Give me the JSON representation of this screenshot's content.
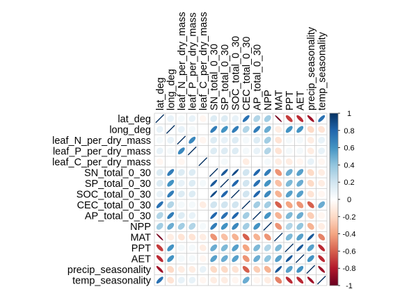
{
  "chart_data": {
    "type": "heatmap",
    "style": "ellipse correlation matrix",
    "variables": [
      "lat_deg",
      "long_deg",
      "leaf_N_per_dry_mass",
      "leaf_P_per_dry_mass",
      "leaf_C_per_dry_mass",
      "SN_total_0_30",
      "SP_total_0_30",
      "SOC_total_0_30",
      "CEC_total_0_30",
      "AP_total_0_30",
      "NPP",
      "MAT",
      "PPT",
      "AET",
      "precip_seasonality",
      "temp_seasonality"
    ],
    "matrix": [
      [
        1,
        0.1,
        0.05,
        0.1,
        -0.05,
        0.15,
        0.15,
        0.1,
        0.75,
        0.3,
        0.35,
        -0.95,
        -0.7,
        -0.75,
        -0.85,
        0.75
      ],
      [
        0.1,
        1,
        0.1,
        0.05,
        0.0,
        0.7,
        0.6,
        0.7,
        0.3,
        0.7,
        0.5,
        -0.1,
        0.6,
        0.6,
        -0.2,
        -0.15
      ],
      [
        0.05,
        0.1,
        1,
        0.65,
        -0.05,
        0.15,
        0.1,
        0.15,
        0.05,
        0.15,
        0.35,
        -0.15,
        0.05,
        0.05,
        -0.1,
        0.1
      ],
      [
        0.1,
        0.05,
        0.65,
        1,
        0.0,
        0.15,
        0.15,
        0.15,
        0.05,
        0.1,
        0.3,
        -0.15,
        0.05,
        0.05,
        -0.1,
        0.1
      ],
      [
        -0.05,
        0.0,
        -0.05,
        0.0,
        1,
        0.0,
        0.05,
        0.0,
        -0.1,
        0.0,
        0.05,
        -0.1,
        -0.1,
        -0.05,
        0.1,
        -0.05
      ],
      [
        0.15,
        0.7,
        0.15,
        0.15,
        0.0,
        1,
        0.85,
        0.9,
        0.2,
        0.8,
        0.7,
        -0.45,
        0.5,
        0.55,
        -0.2,
        -0.1
      ],
      [
        0.15,
        0.6,
        0.1,
        0.15,
        0.05,
        0.85,
        1,
        0.8,
        0.2,
        0.75,
        0.6,
        -0.3,
        0.45,
        0.5,
        -0.2,
        -0.1
      ],
      [
        0.1,
        0.7,
        0.15,
        0.15,
        0.0,
        0.9,
        0.8,
        1,
        0.2,
        0.8,
        0.65,
        -0.35,
        0.55,
        0.55,
        -0.15,
        -0.05
      ],
      [
        0.75,
        0.3,
        0.05,
        0.05,
        -0.1,
        0.2,
        0.2,
        0.2,
        1,
        0.35,
        0.35,
        -0.6,
        -0.4,
        -0.45,
        -0.6,
        0.5
      ],
      [
        0.3,
        0.7,
        0.15,
        0.1,
        0.0,
        0.8,
        0.75,
        0.8,
        0.35,
        1,
        0.6,
        -0.35,
        0.45,
        0.5,
        -0.25,
        -0.05
      ],
      [
        0.35,
        0.5,
        0.35,
        0.3,
        0.05,
        0.7,
        0.6,
        0.65,
        0.35,
        0.6,
        1,
        -0.45,
        0.3,
        0.4,
        -0.35,
        -0.1
      ],
      [
        -0.95,
        -0.1,
        -0.15,
        -0.15,
        -0.1,
        -0.45,
        -0.3,
        -0.35,
        -0.6,
        -0.35,
        -0.45,
        1,
        0.45,
        0.55,
        0.85,
        -0.5
      ],
      [
        -0.7,
        0.6,
        0.05,
        0.05,
        -0.1,
        0.5,
        0.45,
        0.55,
        -0.4,
        0.45,
        0.3,
        0.45,
        1,
        0.85,
        0.55,
        -0.75
      ],
      [
        -0.75,
        0.6,
        0.05,
        0.05,
        -0.05,
        0.55,
        0.5,
        0.55,
        -0.45,
        0.5,
        0.4,
        0.55,
        0.85,
        1,
        0.6,
        -0.75
      ],
      [
        -0.85,
        -0.2,
        -0.1,
        -0.1,
        0.1,
        -0.2,
        -0.2,
        -0.15,
        -0.6,
        -0.25,
        -0.35,
        0.85,
        0.55,
        0.6,
        1,
        -0.85
      ],
      [
        0.75,
        -0.15,
        0.1,
        0.1,
        -0.05,
        -0.1,
        -0.1,
        -0.05,
        0.5,
        -0.05,
        -0.1,
        -0.5,
        -0.75,
        -0.75,
        -0.85,
        1
      ]
    ],
    "color_scale": {
      "min": -1,
      "max": 1,
      "ticks": [
        1,
        0.8,
        0.6,
        0.4,
        0.2,
        0,
        -0.2,
        -0.4,
        -0.6,
        -0.8,
        -1
      ],
      "tick_labels": [
        "1",
        "0.8",
        "0.6",
        "0.4",
        "0.2",
        "0",
        "-0.2",
        "-0.4",
        "-0.6",
        "-0.8",
        "-1"
      ],
      "colors": [
        "#67001f",
        "#b2182b",
        "#d6604d",
        "#f4a582",
        "#fddbc7",
        "#ffffff",
        "#d1e5f0",
        "#92c5de",
        "#4393c3",
        "#2166ac",
        "#053061"
      ]
    },
    "legend": "right",
    "grid": true,
    "title": "",
    "xlabel": "",
    "ylabel": ""
  }
}
